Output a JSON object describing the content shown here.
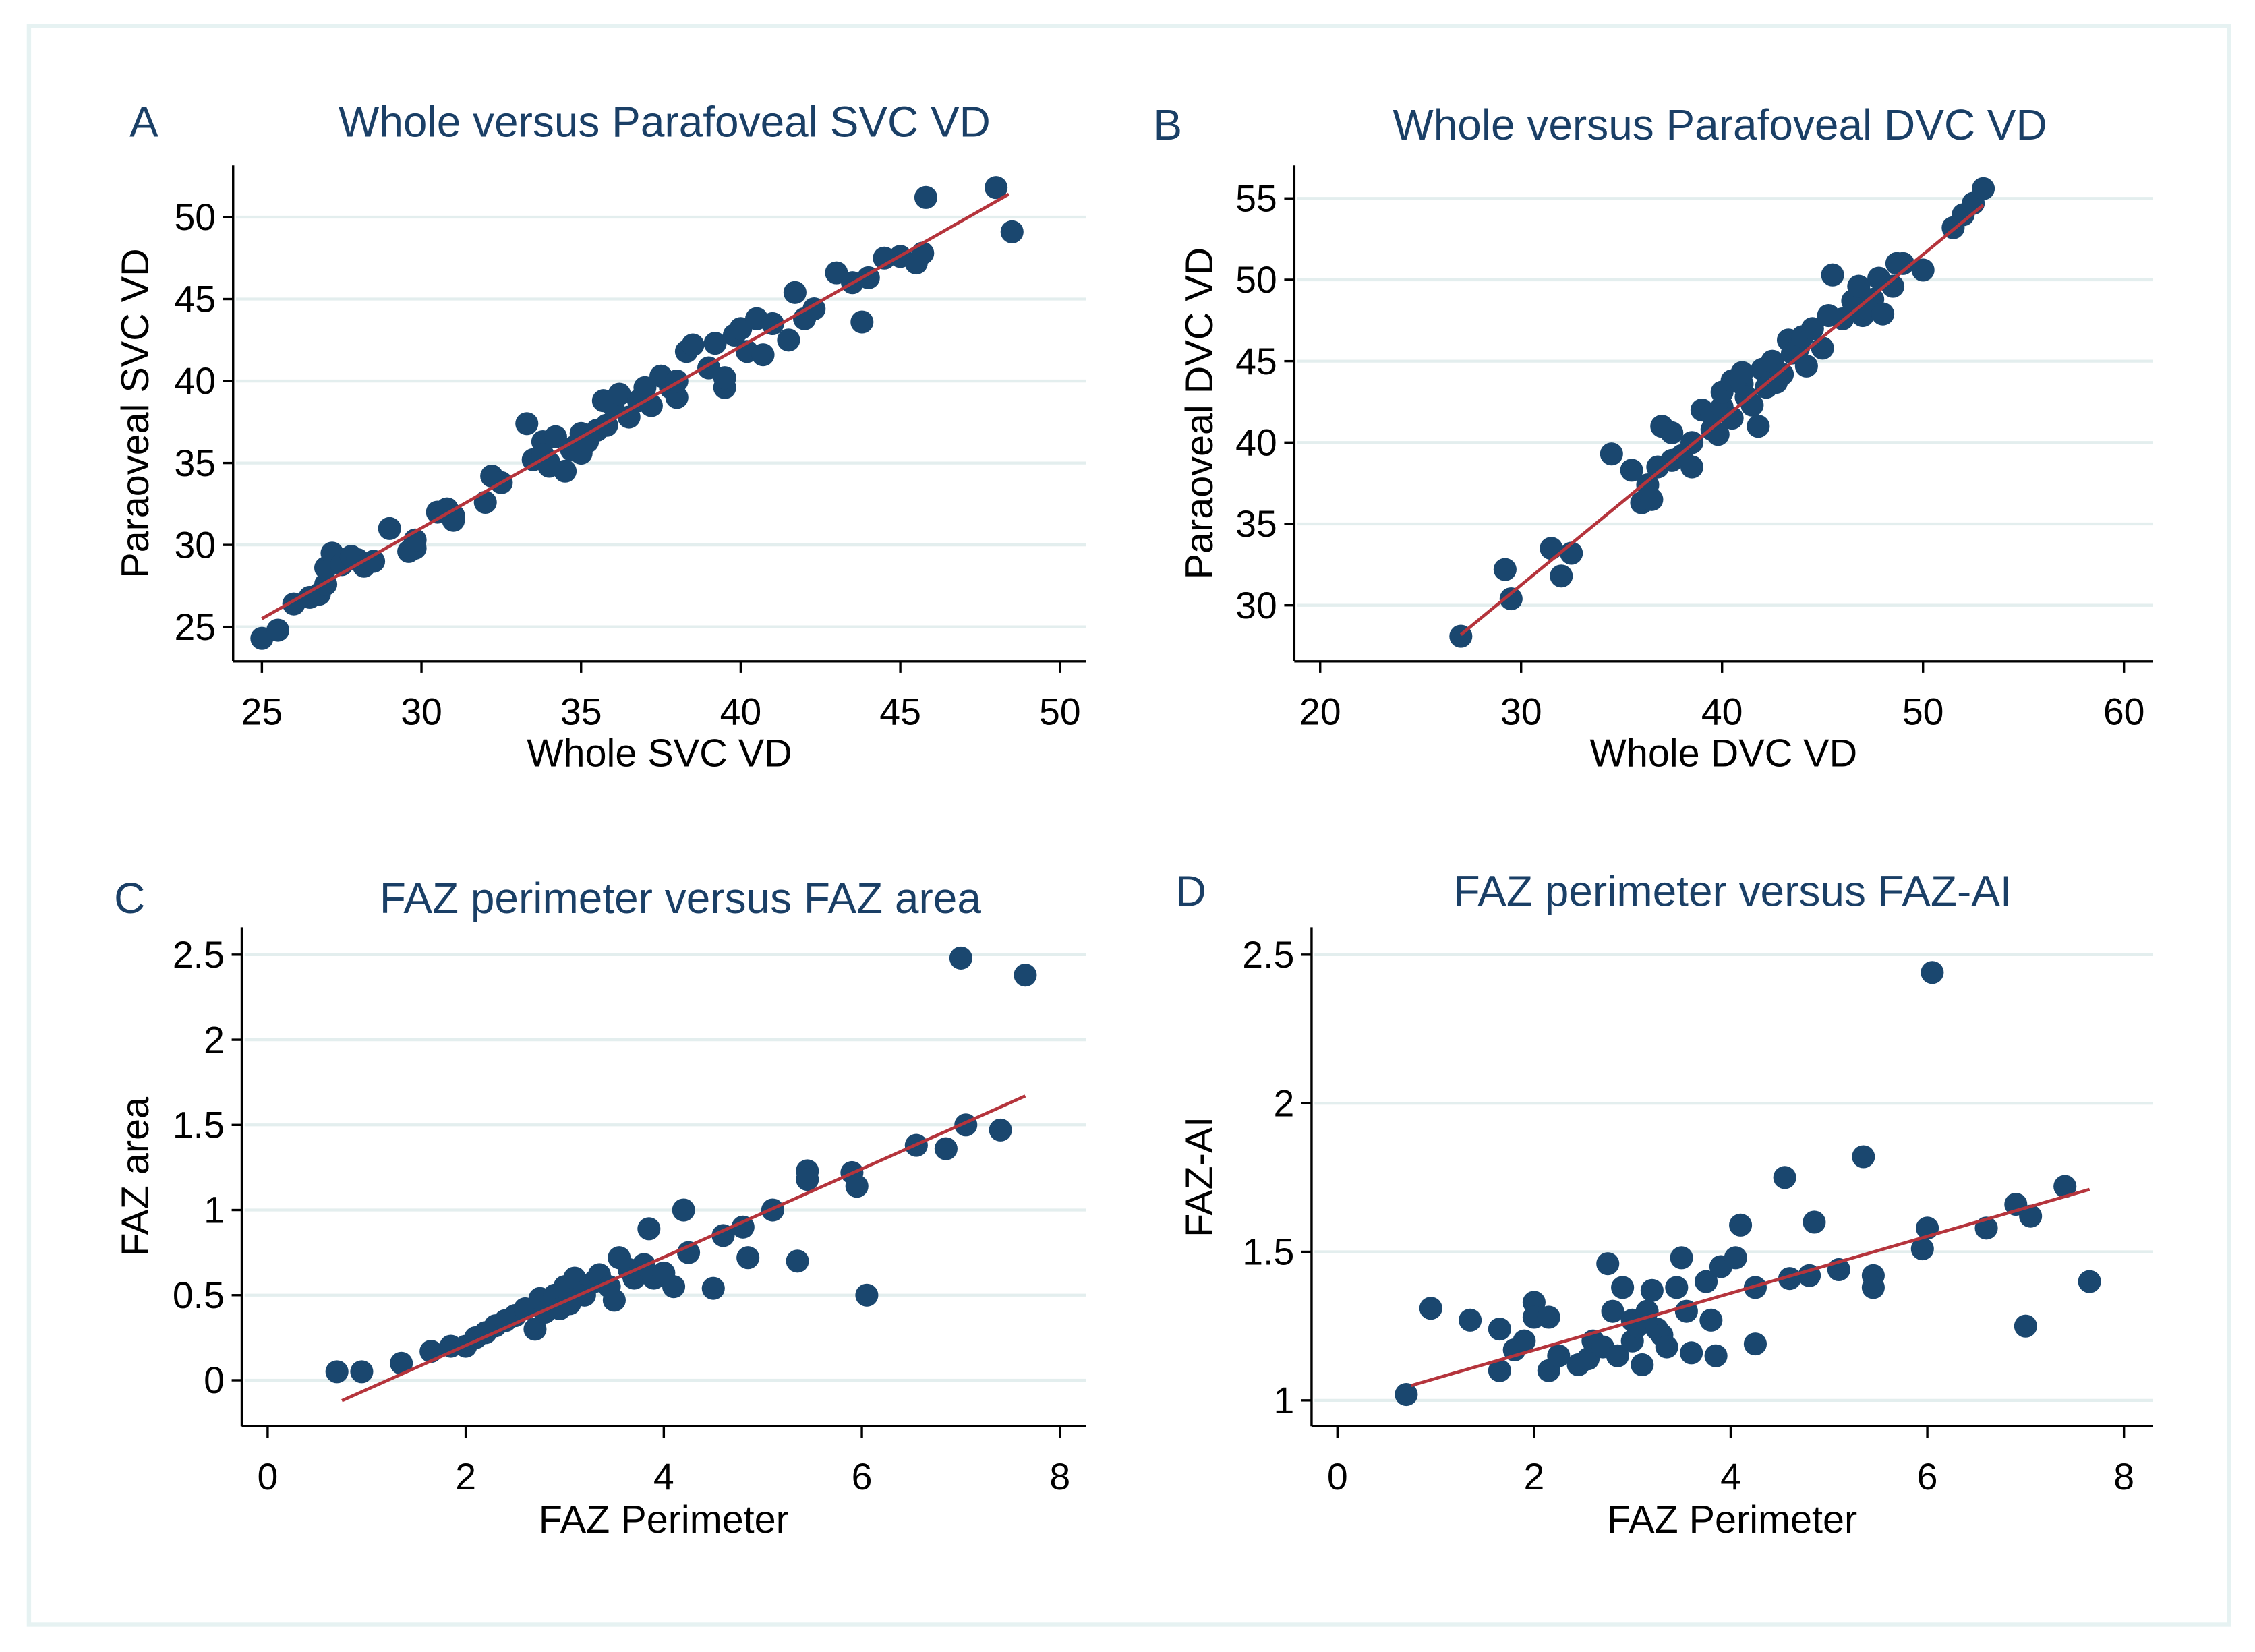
{
  "colors": {
    "point": "#1a476f",
    "fit_line": "#b5343c",
    "grid": "#e3eeee",
    "axis": "#000000",
    "frame": "#e6f2f2"
  },
  "chart_data": [
    {
      "type": "scatter",
      "panel": "A",
      "title": "Whole versus Parafoveal SVC VD",
      "xlabel": "Whole SVC VD",
      "ylabel": "Paraoveal SVC VD",
      "xticks": [
        25,
        30,
        35,
        40,
        45,
        50
      ],
      "yticks": [
        25,
        30,
        35,
        40,
        45,
        50
      ],
      "grid": "horizontal",
      "fit_line": [
        [
          25,
          25.5
        ],
        [
          48.4,
          51.4
        ]
      ],
      "points": [
        [
          25,
          24.3
        ],
        [
          25.5,
          24.8
        ],
        [
          26,
          26.4
        ],
        [
          26.5,
          26.8
        ],
        [
          26.8,
          27
        ],
        [
          27,
          27.6
        ],
        [
          27,
          28.6
        ],
        [
          27.2,
          29.5
        ],
        [
          27.5,
          28.8
        ],
        [
          27.8,
          29.3
        ],
        [
          28,
          29.1
        ],
        [
          28.2,
          28.7
        ],
        [
          28.5,
          29
        ],
        [
          29,
          31
        ],
        [
          29.6,
          29.6
        ],
        [
          29.8,
          29.8
        ],
        [
          29.8,
          30.3
        ],
        [
          30.5,
          32
        ],
        [
          30.8,
          32.2
        ],
        [
          31,
          31.5
        ],
        [
          31,
          31.8
        ],
        [
          32,
          32.6
        ],
        [
          32.2,
          34.2
        ],
        [
          32.5,
          33.8
        ],
        [
          33.3,
          37.4
        ],
        [
          33.5,
          35.2
        ],
        [
          33.8,
          36.3
        ],
        [
          33.8,
          35.5
        ],
        [
          34,
          35
        ],
        [
          34,
          34.8
        ],
        [
          34.2,
          36.6
        ],
        [
          34.5,
          34.5
        ],
        [
          34.7,
          35.8
        ],
        [
          34.8,
          36
        ],
        [
          35,
          35.6
        ],
        [
          35,
          36.8
        ],
        [
          35.2,
          36.3
        ],
        [
          35.5,
          37
        ],
        [
          35.7,
          38.8
        ],
        [
          35.8,
          37.3
        ],
        [
          36,
          38.5
        ],
        [
          36.2,
          39.2
        ],
        [
          36.5,
          37.8
        ],
        [
          36.8,
          38.8
        ],
        [
          37,
          39.6
        ],
        [
          37.2,
          38.5
        ],
        [
          37.5,
          40.3
        ],
        [
          37.8,
          39.6
        ],
        [
          38,
          39
        ],
        [
          38,
          40
        ],
        [
          38.3,
          41.8
        ],
        [
          38.5,
          42.2
        ],
        [
          39,
          40.8
        ],
        [
          39.2,
          42.3
        ],
        [
          39.5,
          39.6
        ],
        [
          39.5,
          40.2
        ],
        [
          39.8,
          42.8
        ],
        [
          40,
          43.2
        ],
        [
          40.2,
          41.8
        ],
        [
          40.5,
          43.8
        ],
        [
          40.7,
          41.6
        ],
        [
          41,
          43.5
        ],
        [
          41.5,
          42.5
        ],
        [
          41.7,
          45.4
        ],
        [
          42,
          43.8
        ],
        [
          42.3,
          44.4
        ],
        [
          43,
          46.6
        ],
        [
          43.5,
          46
        ],
        [
          43.8,
          43.6
        ],
        [
          44,
          46.3
        ],
        [
          44.5,
          47.5
        ],
        [
          45,
          47.6
        ],
        [
          45.5,
          47.2
        ],
        [
          45.7,
          47.8
        ],
        [
          45.8,
          51.2
        ],
        [
          48,
          51.8
        ],
        [
          48.5,
          49.1
        ]
      ]
    },
    {
      "type": "scatter",
      "panel": "B",
      "title": "Whole versus Parafoveal DVC VD",
      "xlabel": "Whole DVC VD",
      "ylabel": "Paraoveal DVC VD",
      "xticks": [
        20,
        30,
        40,
        50,
        60
      ],
      "yticks": [
        30,
        35,
        40,
        45,
        50,
        55
      ],
      "grid": "horizontal",
      "fit_line": [
        [
          27,
          28.2
        ],
        [
          53,
          54.6
        ]
      ],
      "points": [
        [
          27,
          28.1
        ],
        [
          29.2,
          32.2
        ],
        [
          29.5,
          30.4
        ],
        [
          31.5,
          33.5
        ],
        [
          32,
          31.8
        ],
        [
          32.5,
          33.2
        ],
        [
          34.5,
          39.3
        ],
        [
          35.5,
          38.3
        ],
        [
          36,
          36.3
        ],
        [
          36.5,
          36.5
        ],
        [
          36.3,
          37.4
        ],
        [
          36.8,
          38.5
        ],
        [
          37,
          41
        ],
        [
          37.5,
          40.6
        ],
        [
          37.5,
          38.9
        ],
        [
          38,
          39.2
        ],
        [
          38.5,
          38.5
        ],
        [
          38.5,
          40
        ],
        [
          39,
          42
        ],
        [
          39.5,
          40.8
        ],
        [
          39.5,
          41.7
        ],
        [
          39.8,
          40.5
        ],
        [
          40,
          42.2
        ],
        [
          40,
          43.1
        ],
        [
          40.5,
          41.5
        ],
        [
          40.5,
          43.8
        ],
        [
          41,
          43.6
        ],
        [
          41,
          44.3
        ],
        [
          41.2,
          42.8
        ],
        [
          41.5,
          42.3
        ],
        [
          41.8,
          41
        ],
        [
          42,
          44.5
        ],
        [
          42.2,
          43.4
        ],
        [
          42.5,
          45
        ],
        [
          42.7,
          43.7
        ],
        [
          43,
          44.2
        ],
        [
          43.3,
          46.3
        ],
        [
          43.5,
          45.5
        ],
        [
          43.8,
          45.8
        ],
        [
          44,
          46.5
        ],
        [
          44.2,
          44.7
        ],
        [
          44.5,
          47
        ],
        [
          45,
          45.8
        ],
        [
          45.3,
          47.8
        ],
        [
          45.5,
          50.3
        ],
        [
          46,
          47.6
        ],
        [
          46.5,
          48.7
        ],
        [
          46.8,
          49.6
        ],
        [
          47,
          47.8
        ],
        [
          47.5,
          48.8
        ],
        [
          47.8,
          50.1
        ],
        [
          48,
          47.9
        ],
        [
          48.5,
          49.6
        ],
        [
          48.7,
          51
        ],
        [
          49,
          51
        ],
        [
          50,
          50.6
        ],
        [
          51.5,
          53.2
        ],
        [
          52,
          54
        ],
        [
          52.5,
          54.7
        ],
        [
          53,
          55.6
        ]
      ]
    },
    {
      "type": "scatter",
      "panel": "C",
      "title": "FAZ perimeter versus FAZ area",
      "xlabel": "FAZ Perimeter",
      "ylabel": "FAZ area",
      "xticks": [
        0,
        2,
        4,
        6,
        8
      ],
      "yticks": [
        0,
        0.5,
        1,
        1.5,
        2,
        2.5
      ],
      "grid": "horizontal",
      "fit_line": [
        [
          0.75,
          -0.12
        ],
        [
          7.65,
          1.67
        ]
      ],
      "points": [
        [
          0.7,
          0.05
        ],
        [
          0.95,
          0.05
        ],
        [
          1.35,
          0.1
        ],
        [
          1.65,
          0.17
        ],
        [
          1.85,
          0.2
        ],
        [
          2,
          0.2
        ],
        [
          2.1,
          0.25
        ],
        [
          2.2,
          0.28
        ],
        [
          2.3,
          0.32
        ],
        [
          2.4,
          0.35
        ],
        [
          2.5,
          0.38
        ],
        [
          2.6,
          0.42
        ],
        [
          2.7,
          0.3
        ],
        [
          2.75,
          0.48
        ],
        [
          2.8,
          0.4
        ],
        [
          2.9,
          0.5
        ],
        [
          2.95,
          0.42
        ],
        [
          3,
          0.55
        ],
        [
          3.05,
          0.45
        ],
        [
          3.1,
          0.6
        ],
        [
          3.2,
          0.52
        ],
        [
          3.2,
          0.5
        ],
        [
          3.3,
          0.58
        ],
        [
          3.35,
          0.62
        ],
        [
          3.45,
          0.55
        ],
        [
          3.5,
          0.47
        ],
        [
          3.55,
          0.72
        ],
        [
          3.65,
          0.65
        ],
        [
          3.7,
          0.6
        ],
        [
          3.8,
          0.68
        ],
        [
          3.85,
          0.89
        ],
        [
          3.9,
          0.6
        ],
        [
          4,
          0.63
        ],
        [
          4.1,
          0.55
        ],
        [
          4.2,
          1.0
        ],
        [
          4.25,
          0.75
        ],
        [
          4.5,
          0.54
        ],
        [
          4.6,
          0.85
        ],
        [
          4.8,
          0.9
        ],
        [
          4.85,
          0.72
        ],
        [
          5.1,
          1.0
        ],
        [
          5.35,
          0.7
        ],
        [
          5.45,
          1.23
        ],
        [
          5.45,
          1.18
        ],
        [
          5.9,
          1.22
        ],
        [
          5.95,
          1.14
        ],
        [
          6.05,
          0.5
        ],
        [
          6.55,
          1.38
        ],
        [
          6.85,
          1.36
        ],
        [
          7,
          2.48
        ],
        [
          7.05,
          1.5
        ],
        [
          7.4,
          1.47
        ],
        [
          7.65,
          2.38
        ]
      ]
    },
    {
      "type": "scatter",
      "panel": "D",
      "title": "FAZ perimeter versus FAZ-AI",
      "xlabel": "FAZ Perimeter",
      "ylabel": "FAZ-AI",
      "xticks": [
        0,
        2,
        4,
        6,
        8
      ],
      "yticks": [
        1,
        1.5,
        2,
        2.5
      ],
      "grid": "horizontal",
      "fit_line": [
        [
          0.75,
          1.05
        ],
        [
          7.65,
          1.71
        ]
      ],
      "points": [
        [
          0.7,
          1.02
        ],
        [
          0.95,
          1.31
        ],
        [
          1.35,
          1.27
        ],
        [
          1.65,
          1.24
        ],
        [
          1.65,
          1.1
        ],
        [
          1.8,
          1.17
        ],
        [
          1.9,
          1.2
        ],
        [
          2,
          1.33
        ],
        [
          2,
          1.28
        ],
        [
          2.15,
          1.1
        ],
        [
          2.15,
          1.28
        ],
        [
          2.25,
          1.15
        ],
        [
          2.45,
          1.12
        ],
        [
          2.55,
          1.14
        ],
        [
          2.6,
          1.2
        ],
        [
          2.7,
          1.18
        ],
        [
          2.75,
          1.46
        ],
        [
          2.8,
          1.3
        ],
        [
          2.85,
          1.15
        ],
        [
          2.9,
          1.38
        ],
        [
          3,
          1.2
        ],
        [
          3,
          1.27
        ],
        [
          3.05,
          1.25
        ],
        [
          3.1,
          1.12
        ],
        [
          3.15,
          1.3
        ],
        [
          3.2,
          1.37
        ],
        [
          3.25,
          1.24
        ],
        [
          3.3,
          1.22
        ],
        [
          3.35,
          1.18
        ],
        [
          3.45,
          1.38
        ],
        [
          3.5,
          1.48
        ],
        [
          3.55,
          1.3
        ],
        [
          3.6,
          1.16
        ],
        [
          3.75,
          1.4
        ],
        [
          3.8,
          1.27
        ],
        [
          3.85,
          1.15
        ],
        [
          3.9,
          1.45
        ],
        [
          4.05,
          1.48
        ],
        [
          4.1,
          1.59
        ],
        [
          4.25,
          1.38
        ],
        [
          4.25,
          1.19
        ],
        [
          4.55,
          1.75
        ],
        [
          4.6,
          1.41
        ],
        [
          4.8,
          1.42
        ],
        [
          4.85,
          1.6
        ],
        [
          5.1,
          1.44
        ],
        [
          5.35,
          1.82
        ],
        [
          5.45,
          1.42
        ],
        [
          5.45,
          1.38
        ],
        [
          5.95,
          1.51
        ],
        [
          6,
          1.58
        ],
        [
          6.05,
          2.44
        ],
        [
          6.6,
          1.58
        ],
        [
          6.9,
          1.66
        ],
        [
          7,
          1.25
        ],
        [
          7.05,
          1.62
        ],
        [
          7.4,
          1.72
        ],
        [
          7.65,
          1.4
        ]
      ]
    }
  ]
}
